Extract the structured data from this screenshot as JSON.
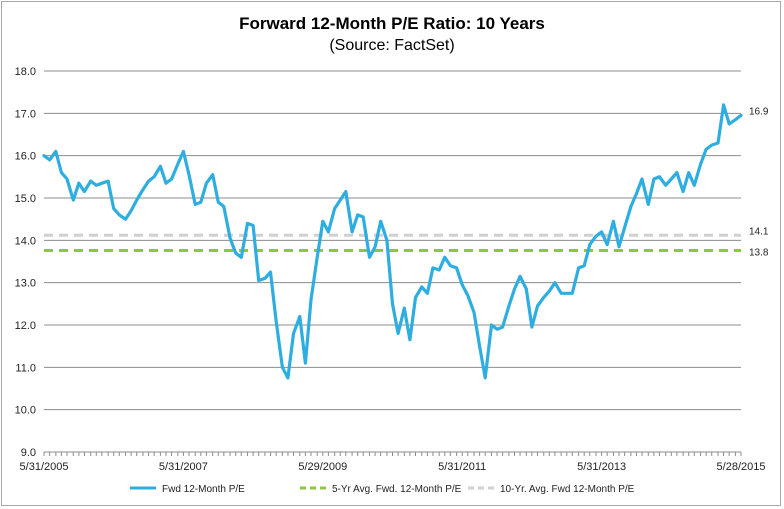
{
  "chart_data": {
    "type": "line",
    "title": "Forward 12-Month P/E Ratio: 10 Years",
    "subtitle": "(Source: FactSet)",
    "xlabel": "",
    "ylabel": "",
    "ylim": [
      9.0,
      18.0
    ],
    "yticks": [
      "9.0",
      "10.0",
      "11.0",
      "12.0",
      "13.0",
      "14.0",
      "15.0",
      "16.0",
      "17.0",
      "18.0"
    ],
    "xticks": [
      "5/31/2005",
      "5/31/2007",
      "5/29/2009",
      "5/31/2011",
      "5/31/2013",
      "5/28/2015"
    ],
    "xtick_years": [
      2005.41,
      2007.41,
      2009.41,
      2011.41,
      2013.41,
      2015.41
    ],
    "xlim": [
      2005.41,
      2015.41
    ],
    "grid": "horizontal",
    "legend_position": "bottom",
    "series": [
      {
        "name": "Fwd 12-Month P/E",
        "color": "#2eaee0",
        "style": "solid",
        "x": [
          2005.41,
          2005.49,
          2005.58,
          2005.66,
          2005.74,
          2005.83,
          2005.91,
          2005.99,
          2006.08,
          2006.16,
          2006.24,
          2006.33,
          2006.41,
          2006.49,
          2006.58,
          2006.66,
          2006.74,
          2006.83,
          2006.91,
          2006.99,
          2007.08,
          2007.16,
          2007.24,
          2007.33,
          2007.41,
          2007.49,
          2007.58,
          2007.66,
          2007.74,
          2007.83,
          2007.91,
          2007.99,
          2008.08,
          2008.16,
          2008.24,
          2008.33,
          2008.41,
          2008.49,
          2008.58,
          2008.66,
          2008.74,
          2008.83,
          2008.91,
          2008.99,
          2009.08,
          2009.16,
          2009.24,
          2009.33,
          2009.41,
          2009.49,
          2009.58,
          2009.66,
          2009.74,
          2009.83,
          2009.91,
          2009.99,
          2010.08,
          2010.16,
          2010.24,
          2010.33,
          2010.41,
          2010.49,
          2010.58,
          2010.66,
          2010.74,
          2010.83,
          2010.91,
          2010.99,
          2011.08,
          2011.16,
          2011.24,
          2011.33,
          2011.41,
          2011.49,
          2011.58,
          2011.66,
          2011.74,
          2011.83,
          2011.91,
          2011.99,
          2012.08,
          2012.16,
          2012.24,
          2012.33,
          2012.41,
          2012.49,
          2012.58,
          2012.66,
          2012.74,
          2012.83,
          2012.91,
          2012.99,
          2013.08,
          2013.16,
          2013.24,
          2013.33,
          2013.41,
          2013.49,
          2013.58,
          2013.66,
          2013.74,
          2013.83,
          2013.91,
          2013.99,
          2014.08,
          2014.16,
          2014.24,
          2014.33,
          2014.41,
          2014.49,
          2014.58,
          2014.66,
          2014.74,
          2014.83,
          2014.91,
          2014.99,
          2015.08,
          2015.16,
          2015.24,
          2015.33,
          2015.41
        ],
        "values": [
          16.0,
          15.9,
          16.1,
          15.6,
          15.45,
          14.95,
          15.35,
          15.15,
          15.4,
          15.3,
          15.35,
          15.4,
          14.75,
          14.6,
          14.5,
          14.7,
          14.95,
          15.2,
          15.4,
          15.5,
          15.75,
          15.35,
          15.45,
          15.8,
          16.1,
          15.55,
          14.85,
          14.9,
          15.35,
          15.55,
          14.9,
          14.8,
          14.05,
          13.7,
          13.6,
          14.4,
          14.35,
          13.05,
          13.1,
          13.25,
          12.1,
          11.0,
          10.75,
          11.8,
          12.2,
          11.1,
          12.6,
          13.6,
          14.45,
          14.2,
          14.75,
          14.95,
          15.15,
          14.2,
          14.6,
          14.55,
          13.6,
          13.85,
          14.45,
          14.0,
          12.5,
          11.8,
          12.4,
          11.65,
          12.65,
          12.9,
          12.75,
          13.35,
          13.3,
          13.6,
          13.4,
          13.35,
          12.95,
          12.7,
          12.3,
          11.5,
          10.75,
          12.0,
          11.9,
          11.95,
          12.45,
          12.85,
          13.15,
          12.85,
          11.95,
          12.45,
          12.65,
          12.8,
          13.0,
          12.75,
          12.75,
          12.75,
          13.35,
          13.4,
          13.9,
          14.1,
          14.2,
          13.9,
          14.45,
          13.85,
          14.3,
          14.8,
          15.1,
          15.45,
          14.85,
          15.45,
          15.5,
          15.3,
          15.45,
          15.6,
          15.15,
          15.6,
          15.3,
          15.8,
          16.15,
          16.25,
          16.3,
          17.2,
          16.75,
          16.85,
          16.95
        ]
      },
      {
        "name": "5-Yr Avg. Fwd. 12-Month P/E",
        "color": "#8dc63f",
        "style": "dashed",
        "constant": 13.76,
        "end_label": "13.8"
      },
      {
        "name": "10-Yr. Avg. Fwd 12-Month P/E",
        "color": "#d0d0d0",
        "style": "dashed",
        "constant": 14.12,
        "end_label": "14.1"
      }
    ],
    "last_value_label": "16.9"
  }
}
